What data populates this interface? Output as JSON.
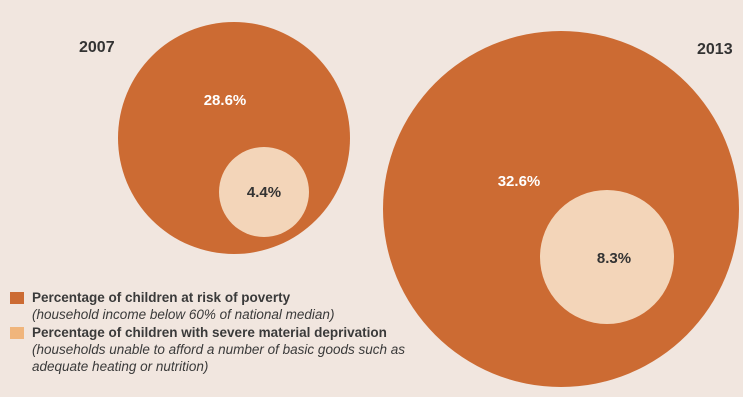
{
  "colors": {
    "background": "#f1e6df",
    "at_risk": "#cc6b33",
    "severe": "#f3d5b9",
    "severe_legend": "#f0b57c",
    "label_light": "#ffffff",
    "label_dark": "#333333"
  },
  "chart_data": {
    "type": "proportional-area circles",
    "title": "",
    "unit": "%",
    "series": [
      {
        "name": "Percentage of children at risk of poverty",
        "color": "#cc6b33"
      },
      {
        "name": "Percentage of children with severe material deprivation",
        "color": "#f3d5b9"
      }
    ],
    "groups": [
      {
        "year": "2007",
        "at_risk_label": "28.6%",
        "severe_label": "4.4%",
        "at_risk": 28.6,
        "severe": 4.4
      },
      {
        "year": "2013",
        "at_risk_label": "32.6%",
        "severe_label": "8.3%",
        "at_risk": 32.6,
        "severe": 8.3
      }
    ]
  },
  "legend": [
    {
      "swatch_color": "#cc6b33",
      "name": "Percentage of children at risk of poverty",
      "description": "(household income below 60% of national median)"
    },
    {
      "swatch_color": "#f0b57c",
      "name": "Percentage of children with severe material deprivation",
      "description": "(households unable to afford a number of basic goods such as adequate heating or nutrition)"
    }
  ]
}
